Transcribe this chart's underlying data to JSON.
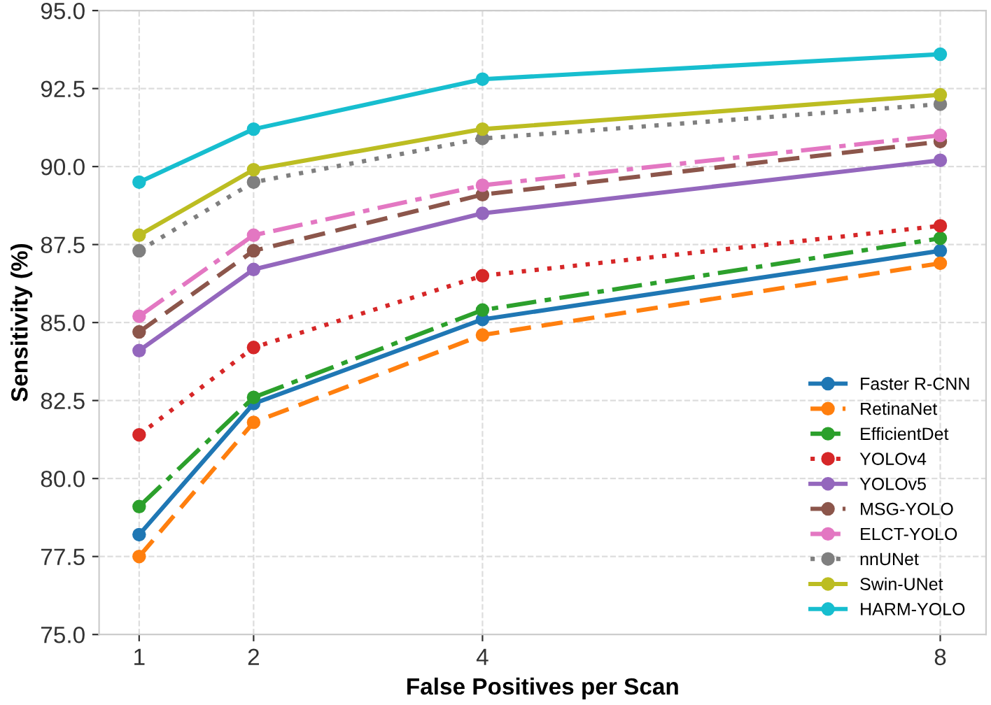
{
  "chart_data": {
    "type": "line",
    "xlabel": "False Positives per Scan",
    "ylabel": "Sensitivity (%)",
    "x": [
      1,
      2,
      4,
      8
    ],
    "xlim": [
      0.65,
      8.4
    ],
    "xticks": [
      1,
      2,
      4,
      8
    ],
    "ylim": [
      75,
      95
    ],
    "yticks": [
      {
        "value": 75,
        "label": "75.0"
      },
      77.5,
      {
        "value": 80,
        "label": "80.0"
      },
      82.5,
      {
        "value": 85,
        "label": "85.0"
      },
      87.5,
      {
        "value": 90,
        "label": "90.0"
      },
      92.5,
      {
        "value": 95,
        "label": "95.0"
      }
    ],
    "grid": true,
    "legend": "bottom right",
    "marker": "circle",
    "series": [
      {
        "name": "Faster R-CNN",
        "color": "#1f77b4",
        "line_style": "solid",
        "values": [
          78.2,
          82.4,
          85.1,
          87.3
        ]
      },
      {
        "name": "RetinaNet",
        "color": "#ff7f0e",
        "line_style": "dashed",
        "values": [
          77.5,
          81.8,
          84.6,
          86.9
        ]
      },
      {
        "name": "EfficientDet",
        "color": "#2ca02c",
        "line_style": "dashdot",
        "values": [
          79.1,
          82.6,
          85.4,
          87.7
        ]
      },
      {
        "name": "YOLOv4",
        "color": "#d62728",
        "line_style": "dotted",
        "values": [
          81.4,
          84.2,
          86.5,
          88.1
        ]
      },
      {
        "name": "YOLOv5",
        "color": "#9467bd",
        "line_style": "solid",
        "values": [
          84.1,
          86.7,
          88.5,
          90.2
        ]
      },
      {
        "name": "MSG-YOLO",
        "color": "#8c564b",
        "line_style": "dashed",
        "values": [
          84.7,
          87.3,
          89.1,
          90.8
        ]
      },
      {
        "name": "ELCT-YOLO",
        "color": "#e377c2",
        "line_style": "dashdot",
        "values": [
          85.2,
          87.8,
          89.4,
          91.0
        ]
      },
      {
        "name": "nnUNet",
        "color": "#7f7f7f",
        "line_style": "dotted",
        "values": [
          87.3,
          89.5,
          90.9,
          92.0
        ]
      },
      {
        "name": "Swin-UNet",
        "color": "#bcbd22",
        "line_style": "solid",
        "values": [
          87.8,
          89.9,
          91.2,
          92.3
        ]
      },
      {
        "name": "HARM-YOLO",
        "color": "#17becf",
        "line_style": "solid",
        "values": [
          89.5,
          91.2,
          92.8,
          93.6
        ]
      }
    ]
  }
}
